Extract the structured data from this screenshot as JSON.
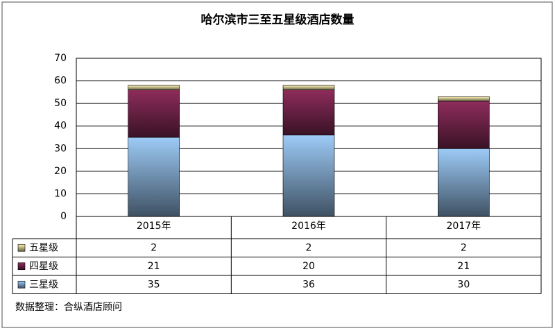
{
  "chart_data": {
    "type": "stacked-bar",
    "title": "哈尔滨市三至五星级酒店数量",
    "categories": [
      "2015年",
      "2016年",
      "2017年"
    ],
    "series": [
      {
        "name": "三星级",
        "color": "#9dcbf7",
        "values": [
          35,
          36,
          30
        ]
      },
      {
        "name": "四星级",
        "color": "#8e2c5c",
        "values": [
          21,
          20,
          21
        ]
      },
      {
        "name": "五星级",
        "color": "#fff4b4",
        "values": [
          2,
          2,
          2
        ]
      }
    ],
    "ylim": [
      0,
      70
    ],
    "yticks": [
      0,
      10,
      20,
      30,
      40,
      50,
      60,
      70
    ],
    "grid": true,
    "source": "数据整理：合纵酒店顾问"
  }
}
